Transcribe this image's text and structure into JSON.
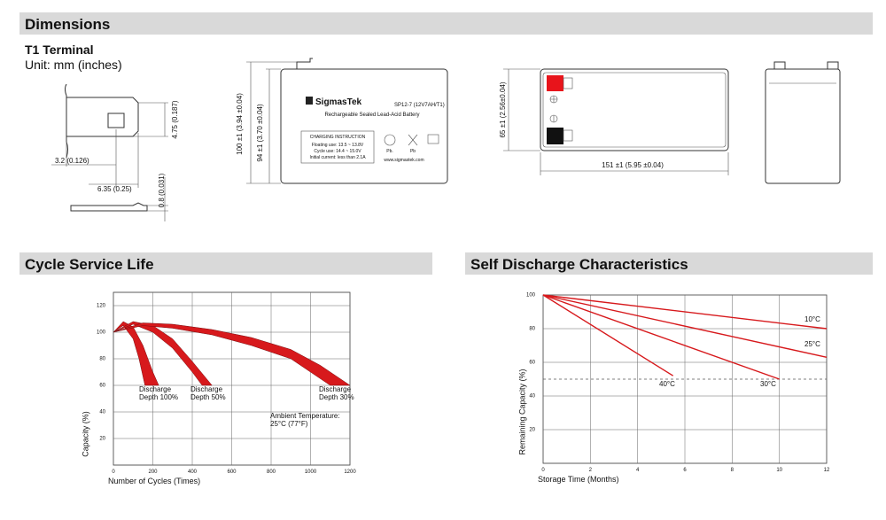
{
  "dimensions": {
    "title": "Dimensions",
    "terminal_title": "T1 Terminal",
    "unit": "Unit: mm (inches)",
    "terminal_labels": [
      "4.75 (0.187)",
      "3.2 (0.126)",
      "6.35 (0.25)",
      "0.8 (0.031)"
    ],
    "front_labels": [
      "100 ±1 (3.94 ±0.04)",
      "94 ±1 (3.70 ±0.04)"
    ],
    "battery_label": {
      "brand": "SigmasTek",
      "model": "SP12-7 (12V7AH/T1)",
      "description": "Rechargeable Sealed Lead-Acid Battery",
      "charging_title": "CHARGING INSTRUCTION",
      "charging_lines": [
        "Floating use: 13.5 ~ 13.8V",
        "Cycle use: 14.4 ~ 15.0V",
        "Initial current: less than 2.1A"
      ],
      "icons": [
        "Pb.",
        "Pb"
      ],
      "website": "www.sigmastek.com"
    },
    "top_labels": [
      "65 ±1 (2.56±0.04)",
      "151 ±1 (5.95 ±0.04)"
    ]
  },
  "chart_data": [
    {
      "type": "band",
      "title": "Cycle Service Life",
      "x_label": "Number of Cycles (Times)",
      "y_label": "Capacity (%)",
      "xlim": [
        0,
        1200
      ],
      "ylim": [
        0,
        130
      ],
      "xticks": [
        0,
        200,
        400,
        600,
        800,
        1000,
        1200
      ],
      "yticks": [
        20,
        40,
        60,
        80,
        100,
        120
      ],
      "grid": true,
      "series": [
        {
          "label": [
            "Discharge",
            "Depth 100%"
          ],
          "color": "#d7191c",
          "upper": {
            "x": [
              0,
              50,
              100,
              150,
              200,
              230
            ],
            "values": [
              100,
              108,
              104,
              90,
              70,
              60
            ]
          },
          "lower": {
            "x": [
              0,
              50,
              100,
              130,
              160
            ],
            "values": [
              100,
              105,
              95,
              80,
              60
            ]
          }
        },
        {
          "label": [
            "Discharge",
            "Depth 50%"
          ],
          "color": "#d7191c",
          "upper": {
            "x": [
              0,
              100,
              200,
              300,
              400,
              500
            ],
            "values": [
              100,
              108,
              105,
              95,
              78,
              60
            ]
          },
          "lower": {
            "x": [
              0,
              100,
              200,
              300,
              400,
              450
            ],
            "values": [
              100,
              106,
              100,
              88,
              70,
              60
            ]
          }
        },
        {
          "label": [
            "Discharge",
            "Depth 30%"
          ],
          "color": "#d7191c",
          "upper": {
            "x": [
              0,
              150,
              300,
              500,
              700,
              900,
              1050,
              1200
            ],
            "values": [
              100,
              107,
              106,
              102,
              96,
              87,
              75,
              60
            ]
          },
          "lower": {
            "x": [
              0,
              150,
              300,
              500,
              700,
              900,
              1000,
              1100
            ],
            "values": [
              100,
              105,
              103,
              98,
              90,
              80,
              70,
              60
            ]
          }
        }
      ],
      "annotation": [
        "Ambient Temperature:",
        "25°C (77°F)"
      ]
    },
    {
      "type": "line",
      "title": "Self Discharge Characteristics",
      "x_label": "Storage Time (Months)",
      "y_label": "Remaining Capacity (%)",
      "xlim": [
        0,
        12
      ],
      "ylim": [
        0,
        100
      ],
      "xticks": [
        0,
        2,
        4,
        6,
        8,
        10,
        12
      ],
      "yticks": [
        20,
        40,
        60,
        80,
        100
      ],
      "grid": true,
      "reference_line": 50,
      "series": [
        {
          "name": "10°C",
          "color": "#d7191c",
          "x": [
            0,
            12
          ],
          "values": [
            100,
            80
          ]
        },
        {
          "name": "25°C",
          "color": "#d7191c",
          "x": [
            0,
            12
          ],
          "values": [
            100,
            63
          ]
        },
        {
          "name": "30°C",
          "color": "#d7191c",
          "x": [
            0,
            10
          ],
          "values": [
            100,
            50
          ]
        },
        {
          "name": "40°C",
          "color": "#d7191c",
          "x": [
            0,
            5.5
          ],
          "values": [
            100,
            52
          ]
        }
      ]
    }
  ]
}
